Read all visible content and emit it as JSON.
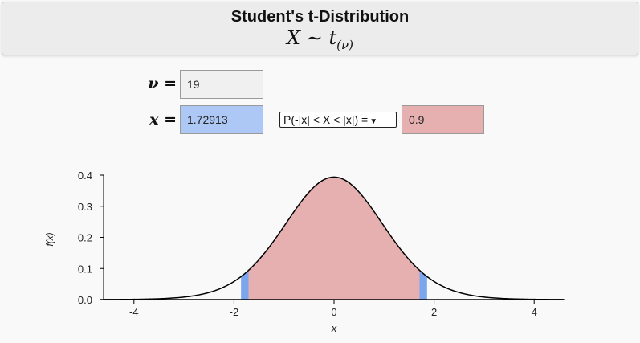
{
  "header": {
    "title": "Student's t-Distribution",
    "formula_main": "X ∼ t",
    "formula_sub": "(ν)"
  },
  "inputs": {
    "nu_label": "ν =",
    "nu_value": "19",
    "x_label": "x =",
    "x_value": "1.72913",
    "prob_select": "P(-|x| < X < |x|) =",
    "prob_value": "0.9"
  },
  "colors": {
    "nu_field": "#f0f0f0",
    "x_field": "#adc8f5",
    "prob_field": "#e6b0b0",
    "center_fill": "#e6b0b0",
    "edge_fill": "#7ba6ee"
  },
  "chart_data": {
    "type": "area",
    "title": "",
    "xlabel": "x",
    "ylabel": "f(x)",
    "distribution": "Student's t",
    "df": 19,
    "x_abs": 1.72913,
    "probability": 0.9,
    "xlim": [
      -4.6,
      4.6
    ],
    "ylim": [
      0,
      0.4
    ],
    "x_ticks": [
      "-4",
      "-2",
      "0",
      "2",
      "4"
    ],
    "x_tick_values": [
      -4,
      -2,
      0,
      2,
      4
    ],
    "y_ticks": [
      "0.0",
      "0.1",
      "0.2",
      "0.3",
      "0.4"
    ],
    "y_tick_values": [
      0,
      0.1,
      0.2,
      0.3,
      0.4
    ],
    "shaded_region": [
      -1.72913,
      1.72913
    ]
  }
}
